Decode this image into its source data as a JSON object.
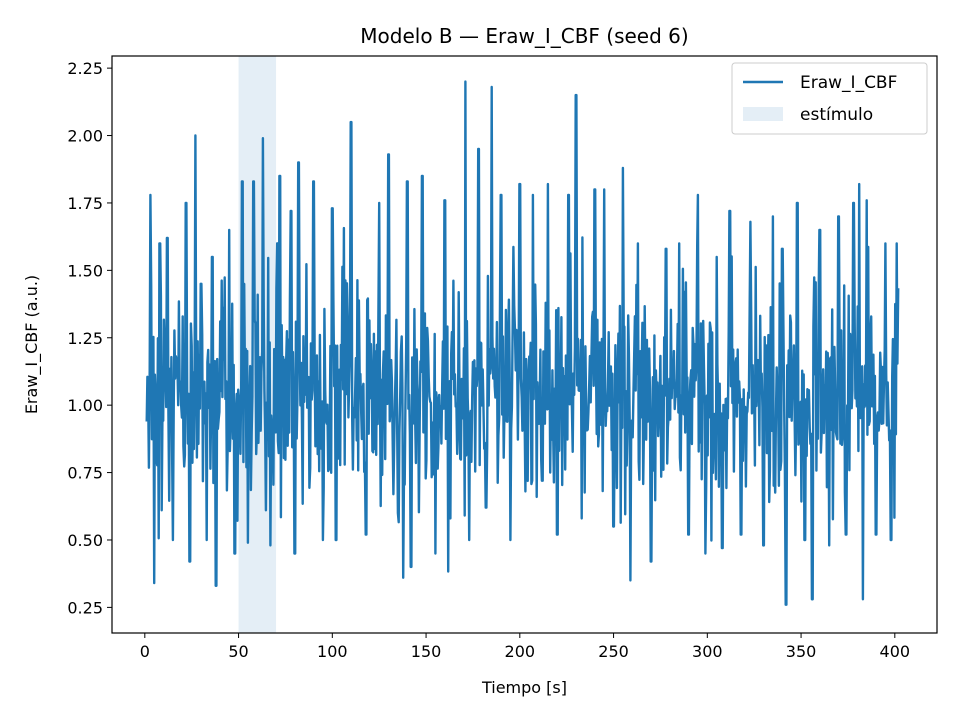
{
  "chart_data": {
    "type": "line",
    "title": "Modelo B — Eraw_I_CBF (seed 6)",
    "xlabel": "Tiempo [s]",
    "ylabel": "Eraw_I_CBF (a.u.)",
    "xlim": [
      -17.5,
      422.5
    ],
    "ylim": [
      0.155,
      2.295
    ],
    "xticks": [
      0,
      50,
      100,
      150,
      200,
      250,
      300,
      350,
      400
    ],
    "yticks": [
      0.25,
      0.5,
      0.75,
      1.0,
      1.25,
      1.5,
      1.75,
      2.0,
      2.25
    ],
    "xtick_labels": [
      "0",
      "50",
      "100",
      "150",
      "200",
      "250",
      "300",
      "350",
      "400"
    ],
    "ytick_labels": [
      "0.25",
      "0.50",
      "0.75",
      "1.00",
      "1.25",
      "1.50",
      "1.75",
      "2.00",
      "2.25"
    ],
    "grid": false,
    "legend_position": "top-right",
    "stimulus": {
      "name": "estímulo",
      "x_start": 50,
      "x_end": 70,
      "color": "#1f77b4",
      "alpha": 0.12
    },
    "series": [
      {
        "name": "Eraw_I_CBF",
        "color": "#1f77b4",
        "x_start": 1,
        "x_end": 402,
        "peaks": [
          [
            3,
            1.78
          ],
          [
            5,
            0.34
          ],
          [
            8,
            1.6
          ],
          [
            12,
            1.62
          ],
          [
            15,
            0.5
          ],
          [
            22,
            1.75
          ],
          [
            24,
            0.42
          ],
          [
            27,
            2.0
          ],
          [
            30,
            1.45
          ],
          [
            33,
            0.5
          ],
          [
            36,
            1.55
          ],
          [
            38,
            0.33
          ],
          [
            45,
            1.65
          ],
          [
            48,
            0.45
          ],
          [
            52,
            1.83
          ],
          [
            55,
            0.49
          ],
          [
            58,
            1.83
          ],
          [
            63,
            1.99
          ],
          [
            67,
            0.48
          ],
          [
            72,
            1.85
          ],
          [
            78,
            1.72
          ],
          [
            80,
            0.45
          ],
          [
            82,
            1.9
          ],
          [
            90,
            1.83
          ],
          [
            95,
            0.5
          ],
          [
            100,
            1.73
          ],
          [
            102,
            0.5
          ],
          [
            110,
            2.05
          ],
          [
            118,
            0.52
          ],
          [
            125,
            1.75
          ],
          [
            130,
            1.93
          ],
          [
            135,
            0.6
          ],
          [
            140,
            1.83
          ],
          [
            142,
            0.4
          ],
          [
            148,
            1.85
          ],
          [
            155,
            0.45
          ],
          [
            160,
            1.76
          ],
          [
            163,
            0.58
          ],
          [
            171,
            2.2
          ],
          [
            173,
            0.5
          ],
          [
            178,
            1.95
          ],
          [
            182,
            0.62
          ],
          [
            185,
            2.18
          ],
          [
            190,
            1.78
          ],
          [
            195,
            0.5
          ],
          [
            200,
            1.82
          ],
          [
            203,
            0.68
          ],
          [
            207,
            1.78
          ],
          [
            212,
            0.72
          ],
          [
            215,
            1.82
          ],
          [
            220,
            0.52
          ],
          [
            226,
            1.78
          ],
          [
            230,
            2.15
          ],
          [
            233,
            0.58
          ],
          [
            240,
            1.8
          ],
          [
            245,
            1.8
          ],
          [
            250,
            0.55
          ],
          [
            255,
            1.88
          ],
          [
            259,
            0.35
          ],
          [
            263,
            1.6
          ],
          [
            270,
            0.42
          ],
          [
            278,
            1.58
          ],
          [
            285,
            1.6
          ],
          [
            290,
            0.52
          ],
          [
            295,
            1.78
          ],
          [
            299,
            0.45
          ],
          [
            305,
            1.55
          ],
          [
            308,
            0.47
          ],
          [
            312,
            1.72
          ],
          [
            318,
            0.52
          ],
          [
            323,
            1.68
          ],
          [
            330,
            0.48
          ],
          [
            335,
            1.7
          ],
          [
            340,
            1.58
          ],
          [
            342,
            0.25
          ],
          [
            348,
            1.75
          ],
          [
            352,
            0.5
          ],
          [
            356,
            0.28
          ],
          [
            360,
            1.65
          ],
          [
            365,
            0.48
          ],
          [
            370,
            1.7
          ],
          [
            374,
            0.52
          ],
          [
            378,
            1.75
          ],
          [
            381,
            1.82
          ],
          [
            383,
            0.28
          ],
          [
            385,
            1.76
          ],
          [
            390,
            0.52
          ],
          [
            395,
            1.6
          ],
          [
            398,
            0.5
          ],
          [
            401,
            1.6
          ]
        ]
      }
    ]
  }
}
